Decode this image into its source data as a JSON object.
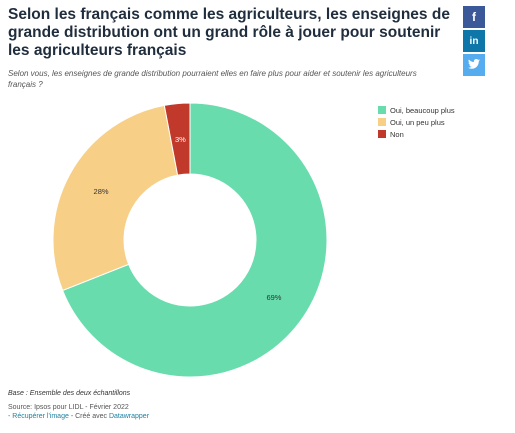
{
  "title": "Selon les français comme les agriculteurs, les enseignes de grande distribution ont un grand rôle à jouer pour soutenir les agriculteurs français",
  "subtitle": "Selon vous, les enseignes de grande distribution pourraient elles en faire plus pour aider et soutenir les agriculteurs français ?",
  "share": {
    "facebook": "f",
    "linkedin": "in",
    "twitter": "🐦"
  },
  "chart_data": {
    "type": "pie",
    "variant": "donut",
    "categories": [
      "Oui, beaucoup plus",
      "Oui, un peu plus",
      "Non"
    ],
    "values": [
      69,
      28,
      3
    ],
    "labels": [
      "69%",
      "28%",
      "3%"
    ],
    "colors": [
      "#68dcad",
      "#f8cf86",
      "#c0392b"
    ],
    "legend_position": "right"
  },
  "footer": {
    "note": "Base : Ensemble des deux échantillons",
    "source": "Source: Ipsos pour LIDL - Février 2022",
    "link_image": "- Récupérer l'image",
    "created_with": " - Créé avec ",
    "datawrapper": "Datawrapper"
  }
}
